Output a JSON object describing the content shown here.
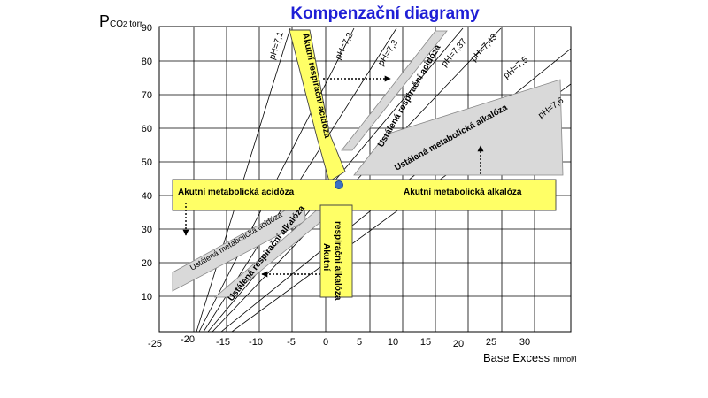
{
  "title": "Kompenzační diagramy",
  "y_axis": {
    "label_main": "P",
    "label_sub": "CO",
    "label_sub2": "2",
    "label_unit": " torr",
    "ticks": [
      "90",
      "80",
      "70",
      "60",
      "50",
      "40",
      "30",
      "20",
      "10"
    ]
  },
  "x_axis": {
    "label": "Base Excess",
    "unit": "mmol/l",
    "ticks": [
      "-25",
      "-20",
      "-15",
      "-10",
      "-5",
      "0",
      "5",
      "10",
      "15",
      "20",
      "25",
      "30"
    ]
  },
  "ph_lines": [
    "pH=7,1",
    "pH=7,2",
    "pH=7,3",
    "pH=7,37",
    "pH=7,43",
    "pH=7,5",
    "pH=7,6"
  ],
  "zones": {
    "acute_resp_acidosis": "Akutní respirační acidóza",
    "chronic_resp_acidosis": "Ustálená respirační acidóza",
    "acute_met_acidosis": "Akutní metabolická acidóza",
    "acute_met_alkalosis": "Akutní metabolická alkalóza",
    "chronic_met_alkalosis": "Ustálená metabolická alkalóza",
    "chronic_met_acidosis": "Ustálená metabolická acidóza",
    "chronic_resp_alkalosis": "Ustálená respirační alkalóza",
    "acute_resp_alkalosis_1": "Akutní",
    "acute_resp_alkalosis_2": "respirační alkalóza"
  },
  "colors": {
    "acute_zone": "#ffff66",
    "chronic_zone": "#d9d9d9",
    "title": "#1f1fd6",
    "normal_point": "#3a6fc4"
  }
}
